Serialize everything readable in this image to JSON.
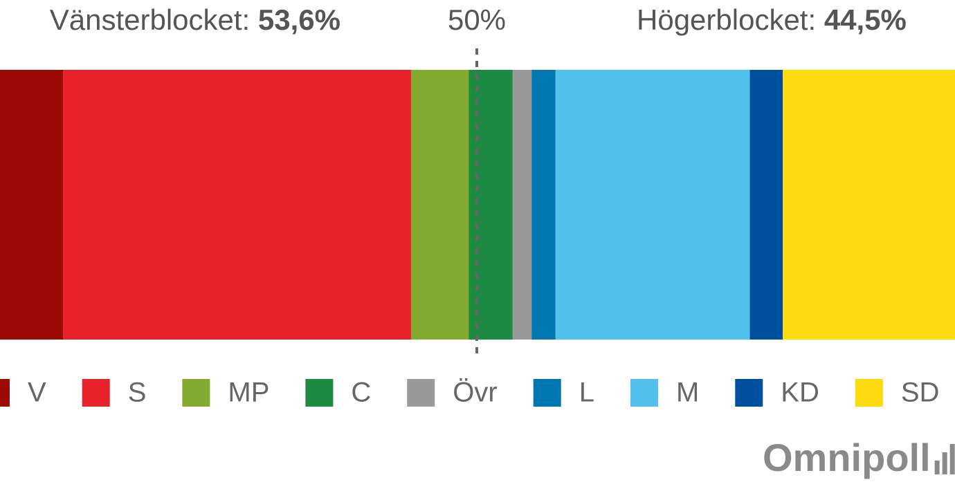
{
  "chart_data": {
    "type": "stacked-bar",
    "blocks": [
      {
        "name": "Vänsterblocket:",
        "value": 53.6,
        "value_label": "53,6%"
      },
      {
        "name": "Högerblocket:",
        "value": 44.5,
        "value_label": "44,5%"
      }
    ],
    "reference": {
      "value": 50,
      "label": "50%"
    },
    "xlim": [
      0,
      100
    ],
    "series": [
      {
        "name": "V",
        "color": "#9b0a05",
        "values": [
          8.5
        ]
      },
      {
        "name": "S",
        "color": "#e8222a",
        "values": [
          34.9
        ]
      },
      {
        "name": "MP",
        "color": "#83ab2f",
        "values": [
          5.8
        ]
      },
      {
        "name": "C",
        "color": "#1d8a43",
        "values": [
          4.4
        ]
      },
      {
        "name": "Övr",
        "color": "#999999",
        "values": [
          1.9
        ]
      },
      {
        "name": "L",
        "color": "#0077b0",
        "values": [
          2.4
        ]
      },
      {
        "name": "M",
        "color": "#52c0ec",
        "values": [
          19.5
        ]
      },
      {
        "name": "KD",
        "color": "#004f9f",
        "values": [
          3.3
        ]
      },
      {
        "name": "SD",
        "color": "#fddb0e",
        "values": [
          19.3
        ]
      }
    ],
    "source": "Omnipoll"
  }
}
